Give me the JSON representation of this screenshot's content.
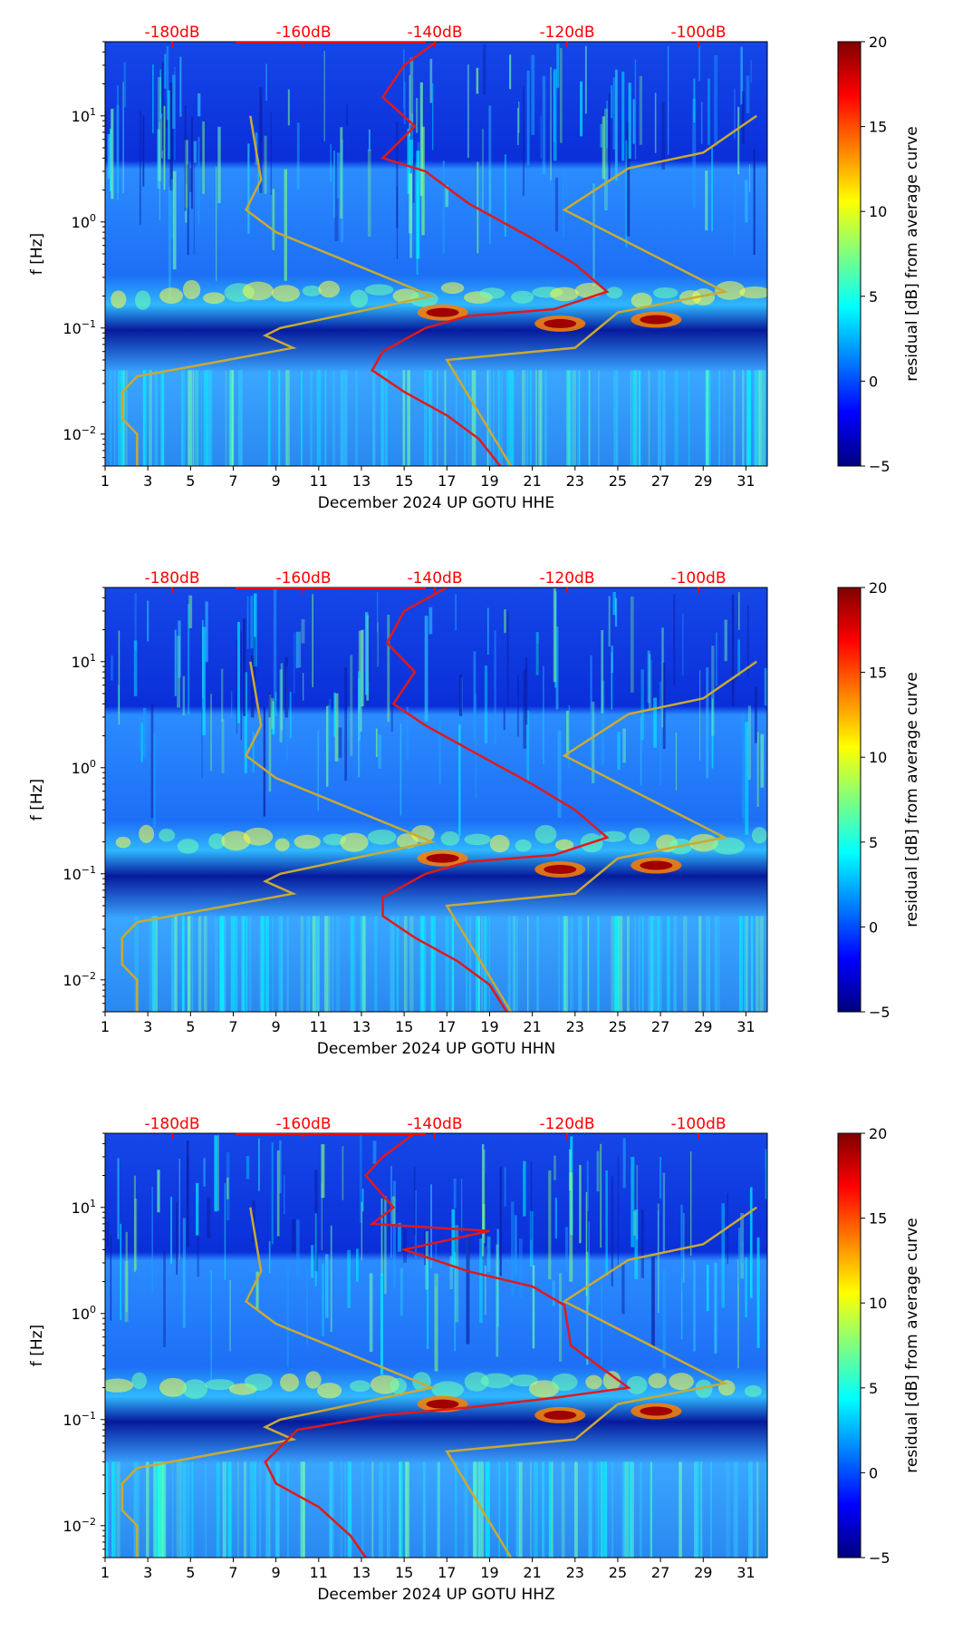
{
  "colorbar": {
    "label": "residual [dB] from average curve",
    "ticks": [
      "20",
      "15",
      "10",
      "5",
      "0",
      "−5"
    ],
    "range": [
      -5,
      20
    ],
    "colormap": [
      "#00007f",
      "#0000ff",
      "#007fff",
      "#00ffff",
      "#7fff7f",
      "#ffff00",
      "#ff7f00",
      "#ff0000",
      "#7f0000"
    ]
  },
  "colors": {
    "psd_curve": "#e0191b",
    "model_curve": "#c8aa34",
    "top_axis": "#ff0000",
    "background": "#0a2fd9"
  },
  "chart_data": [
    {
      "type": "heatmap",
      "id": "hhe",
      "xlabel": "December 2024 UP GOTU  HHE",
      "ylabel": "f [Hz]",
      "xlim": [
        1,
        32
      ],
      "ylim": [
        0.005,
        50
      ],
      "yscale": "log",
      "x_ticks": [
        "1",
        "3",
        "5",
        "7",
        "9",
        "11",
        "13",
        "15",
        "17",
        "19",
        "21",
        "23",
        "25",
        "27",
        "29",
        "31"
      ],
      "y_ticks": [
        {
          "label": "10",
          "exp": "1",
          "value": 10
        },
        {
          "label": "10",
          "exp": "0",
          "value": 1
        },
        {
          "label": "10",
          "exp": "−1",
          "value": 0.1
        },
        {
          "label": "10",
          "exp": "−2",
          "value": 0.01
        }
      ],
      "top_ticks": [
        "-180dB",
        "-160dB",
        "-140dB",
        "-120dB",
        "-100dB"
      ],
      "hot_spots": [
        {
          "day": 16.8,
          "freq": 0.14
        },
        {
          "day": 22.3,
          "freq": 0.11
        },
        {
          "day": 26.8,
          "freq": 0.12
        }
      ],
      "psd_curve": [
        {
          "day": 16.5,
          "freq": 50
        },
        {
          "day": 15.0,
          "freq": 30
        },
        {
          "day": 14.0,
          "freq": 15
        },
        {
          "day": 15.5,
          "freq": 8
        },
        {
          "day": 14.0,
          "freq": 4
        },
        {
          "day": 16.0,
          "freq": 3
        },
        {
          "day": 18.0,
          "freq": 1.5
        },
        {
          "day": 21.0,
          "freq": 0.7
        },
        {
          "day": 23.0,
          "freq": 0.4
        },
        {
          "day": 24.5,
          "freq": 0.22
        },
        {
          "day": 22.0,
          "freq": 0.15
        },
        {
          "day": 18.0,
          "freq": 0.13
        },
        {
          "day": 16.0,
          "freq": 0.1
        },
        {
          "day": 14.0,
          "freq": 0.06
        },
        {
          "day": 13.5,
          "freq": 0.04
        },
        {
          "day": 15.0,
          "freq": 0.025
        },
        {
          "day": 17.0,
          "freq": 0.015
        },
        {
          "day": 18.5,
          "freq": 0.009
        },
        {
          "day": 19.5,
          "freq": 0.005
        }
      ],
      "model_curves": [
        [
          {
            "day": 7.8,
            "freq": 10
          },
          {
            "day": 8.3,
            "freq": 2.5
          },
          {
            "day": 7.6,
            "freq": 1.3
          },
          {
            "day": 9.0,
            "freq": 0.8
          },
          {
            "day": 16.3,
            "freq": 0.2
          },
          {
            "day": 9.2,
            "freq": 0.1
          },
          {
            "day": 8.5,
            "freq": 0.085
          },
          {
            "day": 9.8,
            "freq": 0.065
          },
          {
            "day": 5.5,
            "freq": 0.045
          },
          {
            "day": 2.5,
            "freq": 0.035
          },
          {
            "day": 1.8,
            "freq": 0.025
          },
          {
            "day": 1.8,
            "freq": 0.014
          },
          {
            "day": 2.5,
            "freq": 0.01
          },
          {
            "day": 2.5,
            "freq": 0.005
          }
        ],
        [
          {
            "day": 31.5,
            "freq": 10
          },
          {
            "day": 29.0,
            "freq": 4.5
          },
          {
            "day": 25.5,
            "freq": 3.2
          },
          {
            "day": 22.5,
            "freq": 1.3
          },
          {
            "day": 30.0,
            "freq": 0.22
          },
          {
            "day": 25.0,
            "freq": 0.14
          },
          {
            "day": 23.0,
            "freq": 0.065
          },
          {
            "day": 17.0,
            "freq": 0.05
          },
          {
            "day": 20.0,
            "freq": 0.005
          }
        ]
      ]
    },
    {
      "type": "heatmap",
      "id": "hhn",
      "xlabel": "December 2024 UP GOTU  HHN",
      "ylabel": "f [Hz]",
      "xlim": [
        1,
        32
      ],
      "ylim": [
        0.005,
        50
      ],
      "yscale": "log",
      "x_ticks": [
        "1",
        "3",
        "5",
        "7",
        "9",
        "11",
        "13",
        "15",
        "17",
        "19",
        "21",
        "23",
        "25",
        "27",
        "29",
        "31"
      ],
      "y_ticks": [
        {
          "label": "10",
          "exp": "1",
          "value": 10
        },
        {
          "label": "10",
          "exp": "0",
          "value": 1
        },
        {
          "label": "10",
          "exp": "−1",
          "value": 0.1
        },
        {
          "label": "10",
          "exp": "−2",
          "value": 0.01
        }
      ],
      "top_ticks": [
        "-180dB",
        "-160dB",
        "-140dB",
        "-120dB",
        "-100dB"
      ],
      "hot_spots": [
        {
          "day": 16.8,
          "freq": 0.14
        },
        {
          "day": 22.3,
          "freq": 0.11
        },
        {
          "day": 26.8,
          "freq": 0.12
        }
      ],
      "psd_curve": [
        {
          "day": 17.0,
          "freq": 50
        },
        {
          "day": 15.0,
          "freq": 30
        },
        {
          "day": 14.2,
          "freq": 15
        },
        {
          "day": 15.5,
          "freq": 8
        },
        {
          "day": 14.5,
          "freq": 4
        },
        {
          "day": 16.0,
          "freq": 2.5
        },
        {
          "day": 18.0,
          "freq": 1.5
        },
        {
          "day": 21.0,
          "freq": 0.7
        },
        {
          "day": 23.0,
          "freq": 0.4
        },
        {
          "day": 24.5,
          "freq": 0.22
        },
        {
          "day": 22.0,
          "freq": 0.15
        },
        {
          "day": 18.0,
          "freq": 0.13
        },
        {
          "day": 16.0,
          "freq": 0.1
        },
        {
          "day": 14.0,
          "freq": 0.06
        },
        {
          "day": 14.0,
          "freq": 0.04
        },
        {
          "day": 15.5,
          "freq": 0.025
        },
        {
          "day": 17.5,
          "freq": 0.015
        },
        {
          "day": 19.0,
          "freq": 0.009
        },
        {
          "day": 19.8,
          "freq": 0.005
        }
      ],
      "model_curves": [
        [
          {
            "day": 7.8,
            "freq": 10
          },
          {
            "day": 8.3,
            "freq": 2.5
          },
          {
            "day": 7.6,
            "freq": 1.3
          },
          {
            "day": 9.0,
            "freq": 0.8
          },
          {
            "day": 16.3,
            "freq": 0.2
          },
          {
            "day": 9.2,
            "freq": 0.1
          },
          {
            "day": 8.5,
            "freq": 0.085
          },
          {
            "day": 9.8,
            "freq": 0.065
          },
          {
            "day": 5.5,
            "freq": 0.045
          },
          {
            "day": 2.5,
            "freq": 0.035
          },
          {
            "day": 1.8,
            "freq": 0.025
          },
          {
            "day": 1.8,
            "freq": 0.014
          },
          {
            "day": 2.5,
            "freq": 0.01
          },
          {
            "day": 2.5,
            "freq": 0.005
          }
        ],
        [
          {
            "day": 31.5,
            "freq": 10
          },
          {
            "day": 29.0,
            "freq": 4.5
          },
          {
            "day": 25.5,
            "freq": 3.2
          },
          {
            "day": 22.5,
            "freq": 1.3
          },
          {
            "day": 30.0,
            "freq": 0.22
          },
          {
            "day": 25.0,
            "freq": 0.14
          },
          {
            "day": 23.0,
            "freq": 0.065
          },
          {
            "day": 17.0,
            "freq": 0.05
          },
          {
            "day": 20.0,
            "freq": 0.005
          }
        ]
      ]
    },
    {
      "type": "heatmap",
      "id": "hhz",
      "xlabel": "December 2024 UP GOTU  HHZ",
      "ylabel": "f [Hz]",
      "xlim": [
        1,
        32
      ],
      "ylim": [
        0.005,
        50
      ],
      "yscale": "log",
      "x_ticks": [
        "1",
        "3",
        "5",
        "7",
        "9",
        "11",
        "13",
        "15",
        "17",
        "19",
        "21",
        "23",
        "25",
        "27",
        "29",
        "31"
      ],
      "y_ticks": [
        {
          "label": "10",
          "exp": "1",
          "value": 10
        },
        {
          "label": "10",
          "exp": "0",
          "value": 1
        },
        {
          "label": "10",
          "exp": "−1",
          "value": 0.1
        },
        {
          "label": "10",
          "exp": "−2",
          "value": 0.01
        }
      ],
      "top_ticks": [
        "-180dB",
        "-160dB",
        "-140dB",
        "-120dB",
        "-100dB"
      ],
      "hot_spots": [
        {
          "day": 16.8,
          "freq": 0.14
        },
        {
          "day": 22.3,
          "freq": 0.11
        },
        {
          "day": 26.8,
          "freq": 0.12
        }
      ],
      "psd_curve": [
        {
          "day": 15.5,
          "freq": 50
        },
        {
          "day": 14.0,
          "freq": 30
        },
        {
          "day": 13.2,
          "freq": 20
        },
        {
          "day": 14.5,
          "freq": 10
        },
        {
          "day": 13.5,
          "freq": 7
        },
        {
          "day": 19.0,
          "freq": 6
        },
        {
          "day": 15.0,
          "freq": 4
        },
        {
          "day": 18.0,
          "freq": 2.5
        },
        {
          "day": 21.0,
          "freq": 1.8
        },
        {
          "day": 22.5,
          "freq": 1.2
        },
        {
          "day": 22.8,
          "freq": 0.5
        },
        {
          "day": 25.5,
          "freq": 0.2
        },
        {
          "day": 22.0,
          "freq": 0.16
        },
        {
          "day": 18.0,
          "freq": 0.13
        },
        {
          "day": 14.0,
          "freq": 0.11
        },
        {
          "day": 10.0,
          "freq": 0.08
        },
        {
          "day": 8.5,
          "freq": 0.04
        },
        {
          "day": 9.0,
          "freq": 0.025
        },
        {
          "day": 11.0,
          "freq": 0.015
        },
        {
          "day": 12.5,
          "freq": 0.008
        },
        {
          "day": 13.2,
          "freq": 0.005
        }
      ],
      "model_curves": [
        [
          {
            "day": 7.8,
            "freq": 10
          },
          {
            "day": 8.3,
            "freq": 2.5
          },
          {
            "day": 7.6,
            "freq": 1.3
          },
          {
            "day": 9.0,
            "freq": 0.8
          },
          {
            "day": 16.3,
            "freq": 0.2
          },
          {
            "day": 9.2,
            "freq": 0.1
          },
          {
            "day": 8.5,
            "freq": 0.085
          },
          {
            "day": 9.8,
            "freq": 0.065
          },
          {
            "day": 5.5,
            "freq": 0.045
          },
          {
            "day": 2.5,
            "freq": 0.035
          },
          {
            "day": 1.8,
            "freq": 0.025
          },
          {
            "day": 1.8,
            "freq": 0.014
          },
          {
            "day": 2.5,
            "freq": 0.01
          },
          {
            "day": 2.5,
            "freq": 0.005
          }
        ],
        [
          {
            "day": 31.5,
            "freq": 10
          },
          {
            "day": 29.0,
            "freq": 4.5
          },
          {
            "day": 25.5,
            "freq": 3.2
          },
          {
            "day": 22.5,
            "freq": 1.3
          },
          {
            "day": 30.0,
            "freq": 0.22
          },
          {
            "day": 25.0,
            "freq": 0.14
          },
          {
            "day": 23.0,
            "freq": 0.065
          },
          {
            "day": 17.0,
            "freq": 0.05
          },
          {
            "day": 20.0,
            "freq": 0.005
          }
        ]
      ]
    }
  ]
}
